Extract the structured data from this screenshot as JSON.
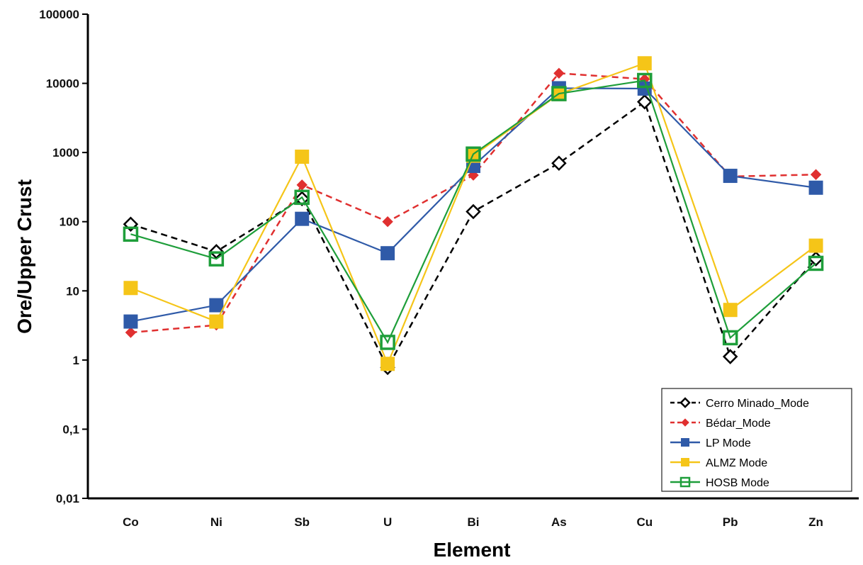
{
  "chart_data": {
    "type": "line",
    "title": "",
    "xlabel": "Element",
    "ylabel": "Ore/Upper Crust",
    "y_scale": "log",
    "ylim": [
      0.01,
      100000
    ],
    "y_ticks": [
      {
        "value": 0.01,
        "label": "0,01"
      },
      {
        "value": 0.1,
        "label": "0,1"
      },
      {
        "value": 1,
        "label": "1"
      },
      {
        "value": 10,
        "label": "10"
      },
      {
        "value": 100,
        "label": "100"
      },
      {
        "value": 1000,
        "label": "1000"
      },
      {
        "value": 10000,
        "label": "10000"
      },
      {
        "value": 100000,
        "label": "100000"
      }
    ],
    "categories": [
      "Co",
      "Ni",
      "Sb",
      "U",
      "Bi",
      "As",
      "Cu",
      "Pb",
      "Zn"
    ],
    "grid": false,
    "legend_position": "bottom-right",
    "series": [
      {
        "name": "Cerro Minado_Mode",
        "color": "#000000",
        "line_style": "dashed",
        "marker": "open-diamond",
        "values": [
          92,
          37,
          215,
          0.78,
          140,
          700,
          5400,
          1.12,
          29
        ]
      },
      {
        "name": "Bédar_Mode",
        "color": "#e03030",
        "line_style": "dashed",
        "marker": "filled-diamond",
        "values": [
          2.5,
          3.2,
          340,
          100,
          470,
          14000,
          11500,
          450,
          480
        ]
      },
      {
        "name": "LP Mode",
        "color": "#2f5aa8",
        "line_style": "solid",
        "marker": "filled-square",
        "values": [
          3.6,
          6.2,
          110,
          35,
          640,
          8500,
          8400,
          460,
          310
        ]
      },
      {
        "name": "ALMZ Mode",
        "color": "#f5c518",
        "line_style": "solid",
        "marker": "filled-square",
        "values": [
          11,
          3.6,
          870,
          0.88,
          900,
          7000,
          19500,
          5.3,
          45
        ]
      },
      {
        "name": "HOSB Mode",
        "color": "#1e9e3a",
        "line_style": "solid",
        "marker": "open-square",
        "values": [
          66,
          29,
          225,
          1.8,
          950,
          7100,
          11000,
          2.1,
          25
        ]
      }
    ]
  }
}
